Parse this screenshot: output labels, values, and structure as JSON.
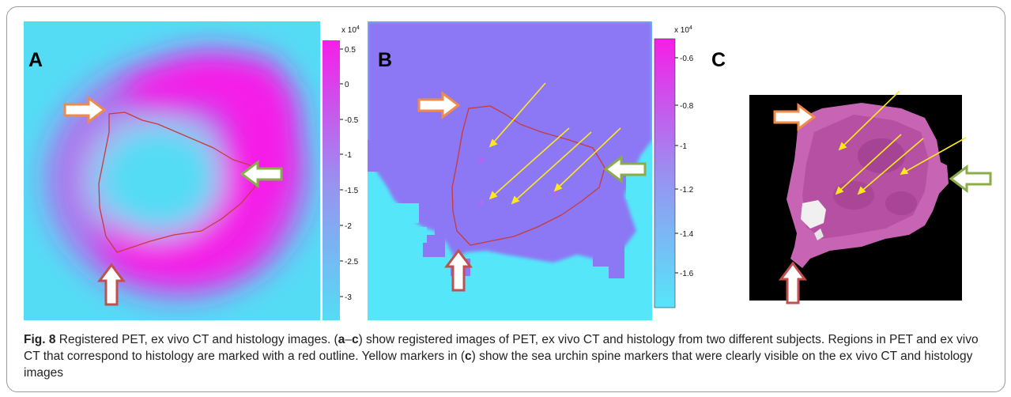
{
  "panels": {
    "a": {
      "letter": "A",
      "colorbar": {
        "multiplier": "x 10",
        "exponent": "4",
        "ticks": [
          "0.5",
          "0",
          "-0.5",
          "-1",
          "-1.5",
          "-2",
          "-2.5",
          "-3"
        ]
      }
    },
    "b": {
      "letter": "B",
      "colorbar": {
        "multiplier": "x 10",
        "exponent": "4",
        "ticks": [
          "-0.6",
          "-0.8",
          "-1",
          "-1.2",
          "-1.4",
          "-1.6"
        ]
      }
    },
    "c": {
      "letter": "C"
    }
  },
  "colors": {
    "cyan": "#55dcf5",
    "magenta": "#f61ee8",
    "purple_tissue": "#8c78f4",
    "outline_red": "#c83a3a",
    "marker_yellow": "#ffe81a",
    "arrow_orange": "#f08a4a",
    "arrow_green": "#8aac4a",
    "arrow_red": "#c0504d"
  },
  "caption": {
    "lead": "Fig. 8",
    "t1": " Registered PET, ex vivo CT and histology images. (",
    "b1": "a",
    "t2": "–",
    "b2": "c",
    "t3": ") show registered images of PET, ex vivo CT and histology from two different subjects. Regions in PET and ex vivo CT that correspond to histology are marked with a red outline. Yellow markers in (",
    "b3": "c",
    "t4": ") show the sea urchin spine markers that were clearly visible on the ex vivo CT and histology images"
  }
}
